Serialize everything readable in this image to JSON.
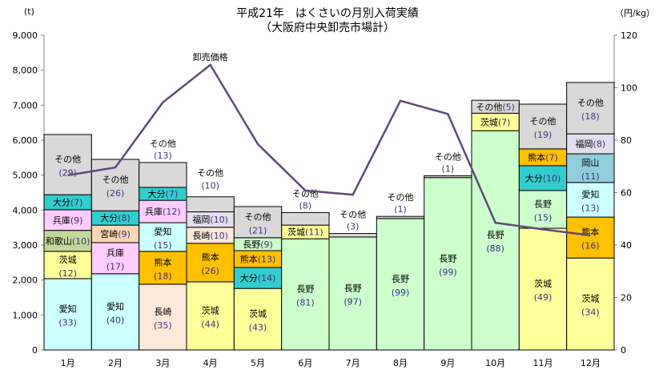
{
  "chart_data": {
    "type": "bar",
    "stacked": true,
    "title": "平成21年　はくさいの月別入荷実績",
    "subtitle": "（大阪府中央卸売市場計）",
    "ylabel_left": "(t)",
    "ylabel_right": "（円/kg）",
    "ylim": [
      0,
      9000
    ],
    "y_ticks": [
      "0",
      "1,000",
      "2,000",
      "3,000",
      "4,000",
      "5,000",
      "6,000",
      "7,000",
      "8,000",
      "9,000"
    ],
    "ylim_right": [
      0,
      120
    ],
    "y2_ticks": [
      "0",
      "20",
      "40",
      "60",
      "80",
      "100",
      "120"
    ],
    "categories": [
      "1月",
      "2月",
      "3月",
      "4月",
      "5月",
      "6月",
      "7月",
      "8月",
      "9月",
      "10月",
      "11月",
      "12月"
    ],
    "colors": {
      "愛知": "#ccffff",
      "茨城": "#ffff99",
      "和歌山": "#c4d79b",
      "兵庫": "#ffccff",
      "大分": "#33cccc",
      "その他": "#d9d9d9",
      "宮崎": "#fcd5b4",
      "長崎": "#fde9d9",
      "熊本": "#ffc000",
      "福岡": "#e4dfec",
      "長野": "#ccffcc",
      "岡山": "#92cddc"
    },
    "months": [
      [
        {
          "n": "愛知",
          "v": 2040,
          "p": "33"
        },
        {
          "n": "茨城",
          "v": 780,
          "p": "12"
        },
        {
          "n": "和歌山",
          "v": 600,
          "p": "10"
        },
        {
          "n": "兵庫",
          "v": 590,
          "p": "9"
        },
        {
          "n": "大分",
          "v": 430,
          "p": "7"
        },
        {
          "n": "その他",
          "v": 1720,
          "p": "29"
        }
      ],
      [
        {
          "n": "愛知",
          "v": 2180,
          "p": "40"
        },
        {
          "n": "兵庫",
          "v": 890,
          "p": "17"
        },
        {
          "n": "宮崎",
          "v": 500,
          "p": "9"
        },
        {
          "n": "大分",
          "v": 410,
          "p": "8"
        },
        {
          "n": "その他",
          "v": 1470,
          "p": "26"
        }
      ],
      [
        {
          "n": "長崎",
          "v": 1880,
          "p": "35"
        },
        {
          "n": "熊本",
          "v": 940,
          "p": "18"
        },
        {
          "n": "愛知",
          "v": 820,
          "p": "15"
        },
        {
          "n": "兵庫",
          "v": 640,
          "p": "12"
        },
        {
          "n": "大分",
          "v": 370,
          "p": "7"
        },
        {
          "n": "その他",
          "v": 710,
          "p": "13",
          "above": true
        }
      ],
      [
        {
          "n": "茨城",
          "v": 1950,
          "p": "44"
        },
        {
          "n": "熊本",
          "v": 1100,
          "p": "26"
        },
        {
          "n": "長崎",
          "v": 460,
          "p": "10"
        },
        {
          "n": "福岡",
          "v": 440,
          "p": "10"
        },
        {
          "n": "その他",
          "v": 430,
          "p": "10",
          "above": true
        }
      ],
      [
        {
          "n": "茨城",
          "v": 1760,
          "p": "43"
        },
        {
          "n": "大分",
          "v": 600,
          "p": "14"
        },
        {
          "n": "熊本",
          "v": 480,
          "p": "13"
        },
        {
          "n": "長野",
          "v": 370,
          "p": "9"
        },
        {
          "n": "その他",
          "v": 890,
          "p": "21"
        }
      ],
      [
        {
          "n": "長野",
          "v": 3180,
          "p": "81"
        },
        {
          "n": "茨城",
          "v": 390,
          "p": "11"
        },
        {
          "n": "その他",
          "v": 360,
          "p": "8",
          "above": true
        }
      ],
      [
        {
          "n": "長野",
          "v": 3230,
          "p": "97"
        },
        {
          "n": "その他",
          "v": 100,
          "p": "3",
          "above": true
        }
      ],
      [
        {
          "n": "長野",
          "v": 3760,
          "p": "99"
        },
        {
          "n": "その他",
          "v": 60,
          "p": "1",
          "above": true
        }
      ],
      [
        {
          "n": "長野",
          "v": 4930,
          "p": "99"
        },
        {
          "n": "その他",
          "v": 50,
          "p": "1",
          "above": true
        }
      ],
      [
        {
          "n": "長野",
          "v": 6270,
          "p": "88"
        },
        {
          "n": "茨城",
          "v": 500,
          "p": "7"
        },
        {
          "n": "その他",
          "v": 370,
          "p": "5"
        }
      ],
      [
        {
          "n": "茨城",
          "v": 3480,
          "p": "49"
        },
        {
          "n": "長野",
          "v": 1080,
          "p": "15"
        },
        {
          "n": "大分",
          "v": 710,
          "p": "10"
        },
        {
          "n": "熊本",
          "v": 480,
          "p": "7"
        },
        {
          "n": "その他",
          "v": 1280,
          "p": "19"
        }
      ],
      [
        {
          "n": "茨城",
          "v": 2630,
          "p": "34"
        },
        {
          "n": "熊本",
          "v": 1170,
          "p": "16"
        },
        {
          "n": "愛知",
          "v": 990,
          "p": "13"
        },
        {
          "n": "岡山",
          "v": 820,
          "p": "11"
        },
        {
          "n": "福岡",
          "v": 570,
          "p": "8"
        },
        {
          "n": "その他",
          "v": 1470,
          "p": "18"
        }
      ]
    ],
    "line": {
      "name": "卸売価格",
      "color": "#60497a",
      "values": [
        66.6,
        69.6,
        94.4,
        108.7,
        78.5,
        60.8,
        59.2,
        95,
        90,
        48.5,
        46,
        43.7
      ]
    }
  }
}
